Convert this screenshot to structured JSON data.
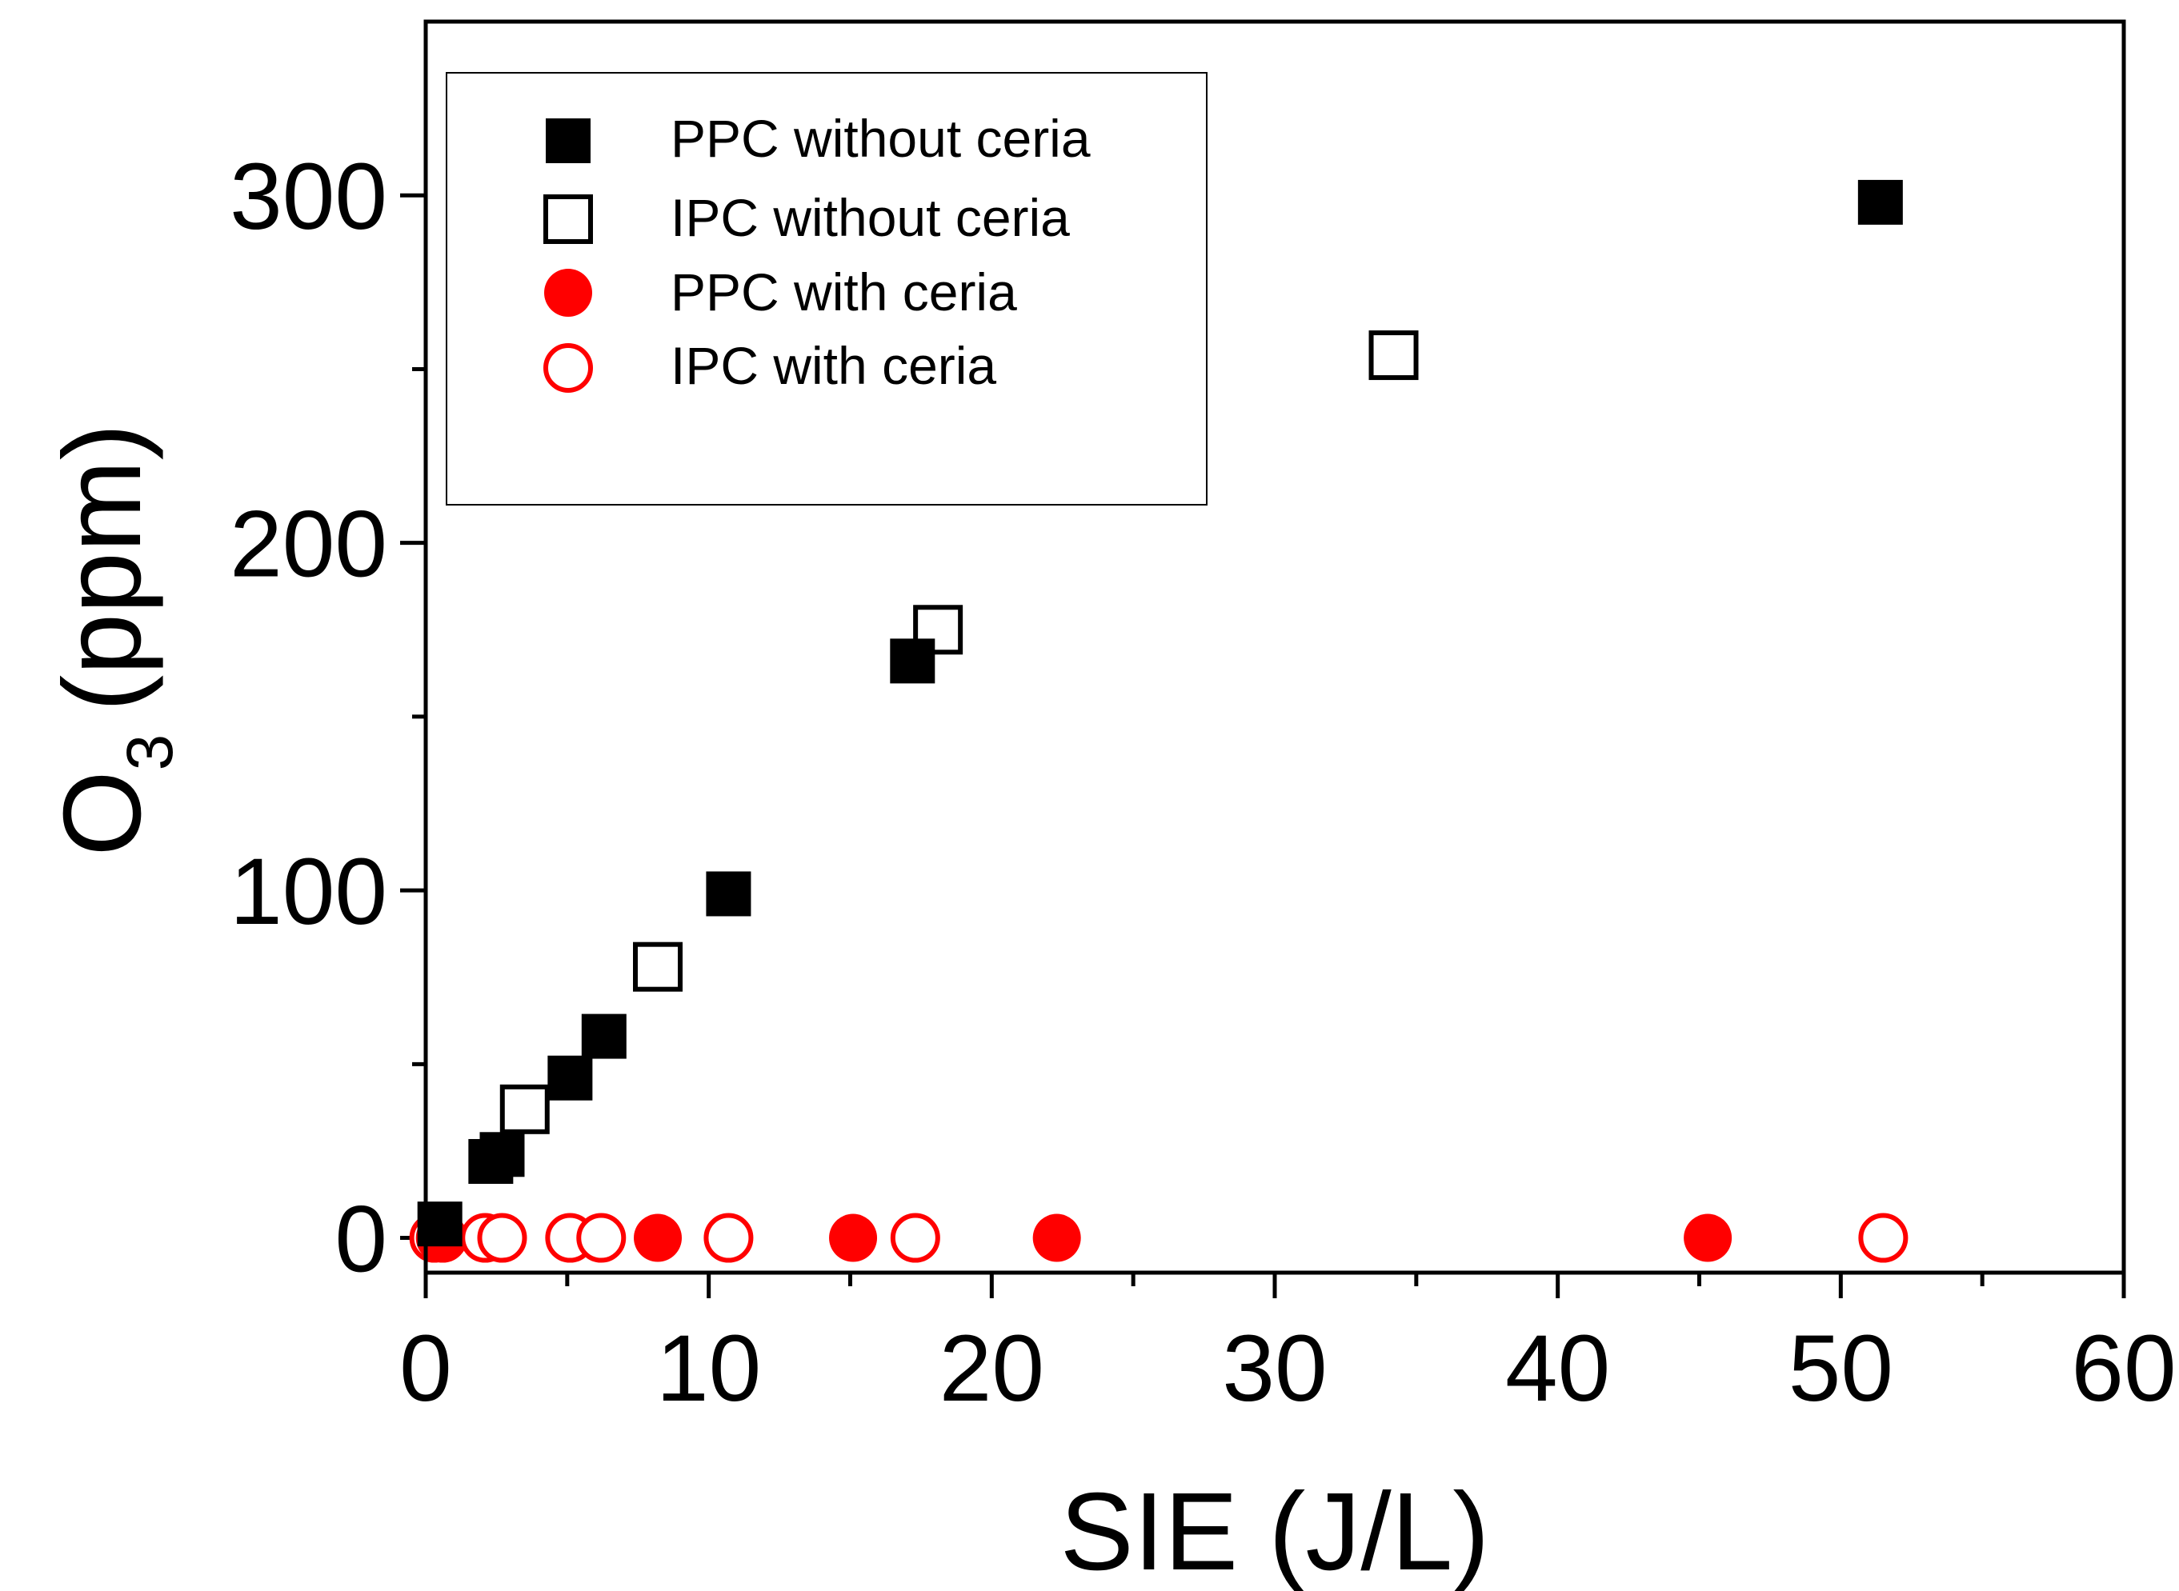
{
  "chart_data": {
    "type": "scatter",
    "title": "",
    "xlabel": "SIE (J/L)",
    "ylabel_main": "O",
    "ylabel_subscript": "3",
    "ylabel_unit": "(ppm)",
    "xlim": [
      0,
      60
    ],
    "ylim": [
      -10,
      350
    ],
    "x_major_ticks": [
      0,
      10,
      20,
      30,
      40,
      50,
      60
    ],
    "x_minor_ticks": [
      5,
      15,
      25,
      35,
      45,
      55
    ],
    "y_major_ticks": [
      0,
      100,
      200,
      300
    ],
    "y_minor_ticks": [
      50,
      150,
      250
    ],
    "x_tick_labels": [
      "0",
      "10",
      "20",
      "30",
      "40",
      "50",
      "60"
    ],
    "y_tick_labels": [
      "0",
      "100",
      "200",
      "300"
    ],
    "grid": false,
    "legend_position": "top-left",
    "series": [
      {
        "name": "PPC without ceria",
        "marker": "square",
        "filled": true,
        "color": "#000000",
        "points": [
          [
            0.5,
            4
          ],
          [
            2.3,
            22
          ],
          [
            2.7,
            24
          ],
          [
            5.1,
            46
          ],
          [
            6.3,
            58
          ],
          [
            10.7,
            99
          ],
          [
            17.2,
            166
          ],
          [
            51.4,
            298
          ]
        ]
      },
      {
        "name": "IPC without ceria",
        "marker": "square",
        "filled": false,
        "color": "#000000",
        "points": [
          [
            3.5,
            37
          ],
          [
            8.2,
            78
          ],
          [
            18.1,
            175
          ],
          [
            34.2,
            254
          ]
        ]
      },
      {
        "name": "PPC with ceria",
        "marker": "circle",
        "filled": true,
        "color": "#ff0000",
        "points": [
          [
            0.5,
            0
          ],
          [
            8.2,
            0
          ],
          [
            15.1,
            0
          ],
          [
            22.3,
            0
          ],
          [
            45.3,
            0
          ]
        ]
      },
      {
        "name": "IPC with ceria",
        "marker": "circle",
        "filled": false,
        "color": "#ff0000",
        "points": [
          [
            0.3,
            0
          ],
          [
            0.6,
            0
          ],
          [
            2.1,
            0
          ],
          [
            2.7,
            0
          ],
          [
            5.1,
            0
          ],
          [
            6.2,
            0
          ],
          [
            10.7,
            0
          ],
          [
            17.3,
            0
          ],
          [
            51.5,
            0
          ]
        ]
      }
    ]
  }
}
